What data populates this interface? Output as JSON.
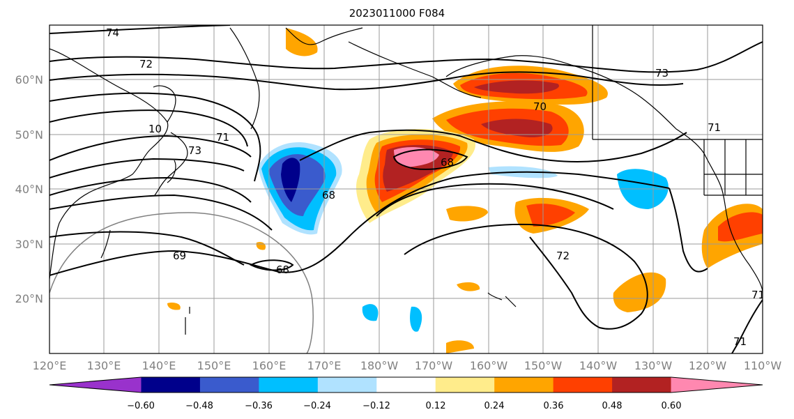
{
  "title": "2023011000 F084",
  "map": {
    "lon_labels": [
      "120°E",
      "130°E",
      "140°E",
      "150°E",
      "160°E",
      "170°E",
      "180°W",
      "170°W",
      "160°W",
      "150°W",
      "140°W",
      "130°W",
      "120°W",
      "110°W"
    ],
    "lat_labels": [
      "60°N",
      "50°N",
      "40°N",
      "30°N",
      "20°N"
    ],
    "contour_labels": [
      "74",
      "72",
      "73",
      "71",
      "70",
      "73",
      "68",
      "68",
      "69",
      "68",
      "72",
      "71",
      "71",
      "71",
      "10"
    ]
  },
  "colorbar": {
    "ticks": [
      "−0.60",
      "−0.48",
      "−0.36",
      "−0.24",
      "−0.12",
      "0.12",
      "0.24",
      "0.36",
      "0.48",
      "0.60"
    ],
    "colors": [
      "#9932cc",
      "#00008b",
      "#3a5bcd",
      "#00bfff",
      "#b0e2ff",
      "#ffffff",
      "#ffec8b",
      "#ffa500",
      "#ff4000",
      "#b22222",
      "#ff88b0"
    ]
  }
}
